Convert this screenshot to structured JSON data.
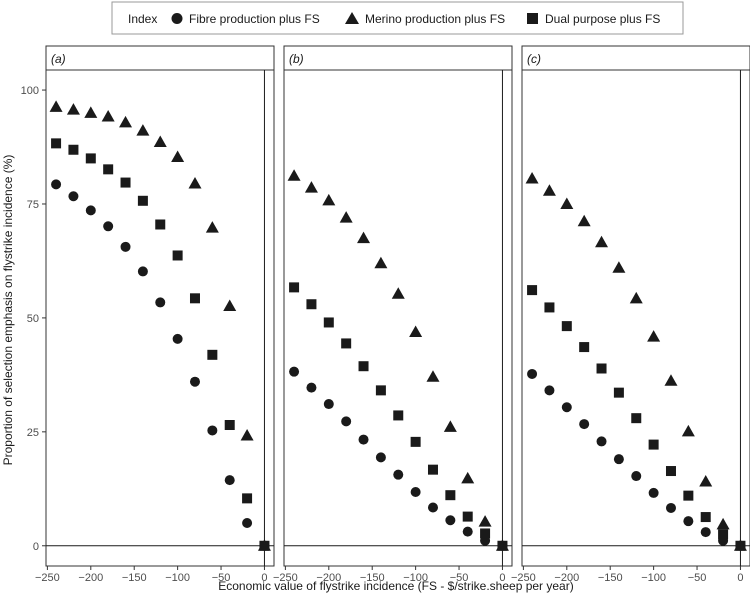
{
  "legend": {
    "title": "Index",
    "items": [
      {
        "label": "Fibre production plus FS",
        "shape": "circle"
      },
      {
        "label": "Merino production plus FS",
        "shape": "triangle"
      },
      {
        "label": "Dual purpose plus FS",
        "shape": "square"
      }
    ]
  },
  "chart_data": {
    "type": "scatter",
    "xlabel": "Economic value of flystrike incidence (FS - $/strike.sheep per year)",
    "ylabel": "Proportion of selection emphasis on  flystrike incidence (%)",
    "xlim": [
      -250,
      0
    ],
    "ylim": [
      0,
      100
    ],
    "x_ticks": [
      "−250",
      "−200",
      "−150",
      "−100",
      "−50",
      "0"
    ],
    "y_ticks": [
      "0",
      "25",
      "50",
      "75",
      "100"
    ],
    "grid": false,
    "legend_position": "top",
    "x": [
      -240,
      -220,
      -200,
      -180,
      -160,
      -140,
      -120,
      -100,
      -80,
      -60,
      -40,
      -20,
      0
    ],
    "panels": [
      {
        "label": "(a)",
        "series": [
          {
            "name": "Fibre production plus FS",
            "values": [
              79.3,
              76.7,
              73.6,
              70.1,
              65.6,
              60.2,
              53.4,
              45.4,
              36.0,
              25.3,
              14.4,
              5.0,
              0
            ]
          },
          {
            "name": "Merino production plus FS",
            "values": [
              96.3,
              95.7,
              95.0,
              94.2,
              92.9,
              91.1,
              88.6,
              85.3,
              79.5,
              69.8,
              52.6,
              24.2,
              0
            ]
          },
          {
            "name": "Dual purpose plus FS",
            "values": [
              88.3,
              86.9,
              85.0,
              82.6,
              79.7,
              75.7,
              70.5,
              63.7,
              54.3,
              41.9,
              26.5,
              10.4,
              0
            ]
          }
        ]
      },
      {
        "label": "(b)",
        "series": [
          {
            "name": "Fibre production plus FS",
            "values": [
              38.2,
              34.7,
              31.1,
              27.3,
              23.3,
              19.4,
              15.6,
              11.8,
              8.4,
              5.6,
              3.1,
              1.1,
              0
            ]
          },
          {
            "name": "Merino production plus FS",
            "values": [
              81.2,
              78.6,
              75.8,
              72.0,
              67.5,
              62.0,
              55.3,
              46.9,
              37.1,
              26.1,
              14.8,
              5.3,
              0
            ]
          },
          {
            "name": "Dual purpose plus FS",
            "values": [
              56.7,
              53.0,
              49.0,
              44.4,
              39.4,
              34.1,
              28.6,
              22.8,
              16.7,
              11.1,
              6.4,
              2.7,
              0
            ]
          }
        ]
      },
      {
        "label": "(c)",
        "series": [
          {
            "name": "Fibre production plus FS",
            "values": [
              37.7,
              34.1,
              30.4,
              26.7,
              22.9,
              19.0,
              15.3,
              11.6,
              8.3,
              5.4,
              3.0,
              1.1,
              0
            ]
          },
          {
            "name": "Merino production plus FS",
            "values": [
              80.6,
              77.9,
              75.0,
              71.2,
              66.6,
              61.0,
              54.3,
              45.9,
              36.2,
              25.1,
              14.1,
              4.7,
              0
            ]
          },
          {
            "name": "Dual purpose plus FS",
            "values": [
              56.1,
              52.3,
              48.2,
              43.6,
              38.9,
              33.6,
              28.0,
              22.2,
              16.4,
              11.0,
              6.3,
              2.5,
              0
            ]
          }
        ]
      }
    ]
  }
}
